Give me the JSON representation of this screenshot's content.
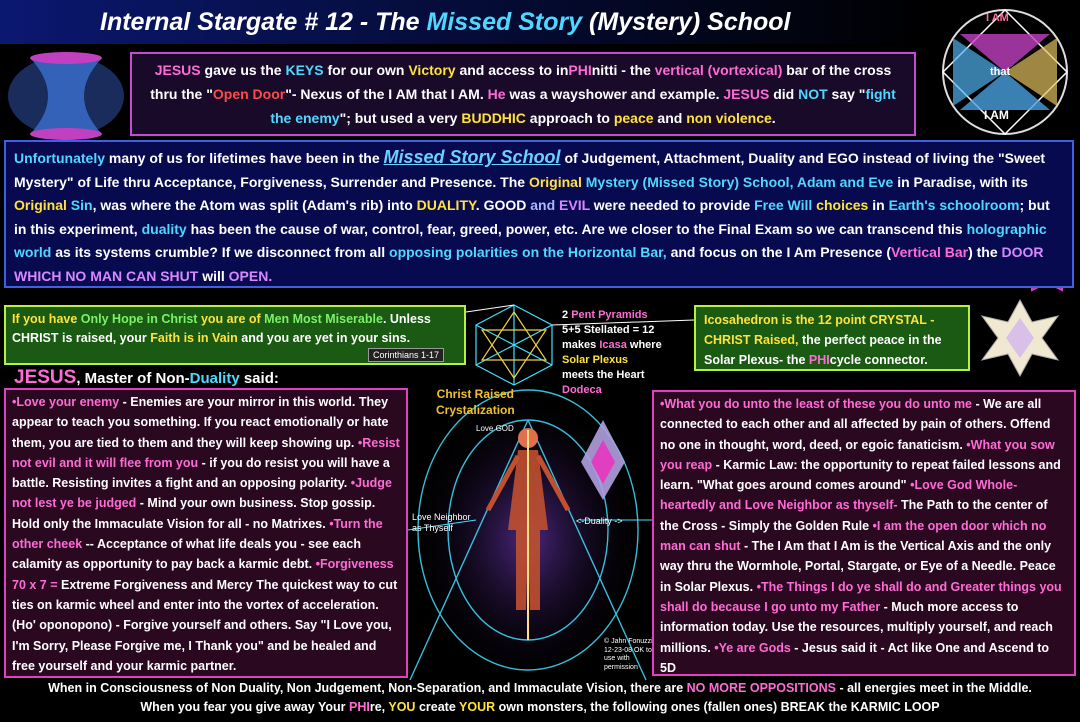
{
  "title": {
    "part1": "Internal Stargate # 12  - The ",
    "highlight": "Missed Story",
    "part2": " (Mystery)  School"
  },
  "top_box": {
    "segments": [
      {
        "t": "JESUS",
        "c": "pk"
      },
      {
        "t": " gave us the ",
        "c": ""
      },
      {
        "t": "KEYS",
        "c": "cy"
      },
      {
        "t": " for our own ",
        "c": ""
      },
      {
        "t": "Victory",
        "c": "yl"
      },
      {
        "t": " and access to in",
        "c": ""
      },
      {
        "t": "PHI",
        "c": "pk"
      },
      {
        "t": "nitti - the ",
        "c": ""
      },
      {
        "t": "vertical (vortexical)",
        "c": "pk"
      },
      {
        "t": " bar of the cross thru the \"",
        "c": ""
      },
      {
        "t": "Open Door",
        "c": "rd"
      },
      {
        "t": "\"- Nexus of the I AM that I AM.  ",
        "c": ""
      },
      {
        "t": "He",
        "c": "pk"
      },
      {
        "t": " was a wayshower and example. ",
        "c": ""
      },
      {
        "t": "JESUS",
        "c": "pk"
      },
      {
        "t": " did ",
        "c": ""
      },
      {
        "t": "NOT",
        "c": "cy"
      },
      {
        "t": " say \"",
        "c": ""
      },
      {
        "t": "fight the enemy",
        "c": "cy"
      },
      {
        "t": "\"; but used a very ",
        "c": ""
      },
      {
        "t": "BUDDHIC",
        "c": "yl"
      },
      {
        "t": " approach to ",
        "c": ""
      },
      {
        "t": "peace",
        "c": "yl"
      },
      {
        "t": " and ",
        "c": ""
      },
      {
        "t": "non violence",
        "c": "yl"
      },
      {
        "t": ".",
        "c": ""
      }
    ]
  },
  "middle_box": {
    "segments": [
      {
        "t": "Unfortunately",
        "c": "cy"
      },
      {
        "t": " many of us for lifetimes have been in the  ",
        "c": ""
      },
      {
        "t": "Missed Story School",
        "c": "msl"
      },
      {
        "t": " of  Judgement, Attachment, Duality and EGO  instead of living the \"Sweet Mystery\" of Life thru Acceptance, Forgiveness, Surrender and Presence. The ",
        "c": ""
      },
      {
        "t": "Original",
        "c": "yl"
      },
      {
        "t": "  Mystery (Missed Story) School, ",
        "c": "cy"
      },
      {
        "t": "Adam and Eve",
        "c": "cy"
      },
      {
        "t": " in Paradise, with its ",
        "c": ""
      },
      {
        "t": "Original",
        "c": "yl"
      },
      {
        "t": " Sin",
        "c": "cy"
      },
      {
        "t": ", was where the Atom was split (Adam's rib) into ",
        "c": ""
      },
      {
        "t": "DUALITY",
        "c": "yl"
      },
      {
        "t": ".  GOOD ",
        "c": ""
      },
      {
        "t": "and",
        "c": "lb"
      },
      {
        "t": " EVIL",
        "c": "vi"
      },
      {
        "t": " were needed to provide ",
        "c": ""
      },
      {
        "t": "Free Will",
        "c": "cy"
      },
      {
        "t": " choices",
        "c": "yl"
      },
      {
        "t": " in ",
        "c": ""
      },
      {
        "t": "Earth's schoolroom",
        "c": "cy"
      },
      {
        "t": "; but in this experiment, ",
        "c": ""
      },
      {
        "t": "duality",
        "c": "cy"
      },
      {
        "t": " has been the cause of war, control, fear, greed, power, etc. Are we closer to the Final Exam so we can transcend this ",
        "c": ""
      },
      {
        "t": "holographic world",
        "c": "cy"
      },
      {
        "t": " as its systems crumble?  If we disconnect from all ",
        "c": ""
      },
      {
        "t": "opposing polarities on the Horizontal Bar,",
        "c": "cy"
      },
      {
        "t": " and focus on the I Am Presence (",
        "c": ""
      },
      {
        "t": "Vertical Bar",
        "c": "pk"
      },
      {
        "t": ") the ",
        "c": ""
      },
      {
        "t": "DOOR WHICH NO MAN CAN SHUT",
        "c": "vi"
      },
      {
        "t": " will ",
        "c": ""
      },
      {
        "t": "OPEN.",
        "c": "vi"
      }
    ]
  },
  "hope_box": {
    "segments": [
      {
        "t": "If you have ",
        "c": "yl"
      },
      {
        "t": "Only Hope in Christ",
        "c": "gr"
      },
      {
        "t": " you are of ",
        "c": "yl"
      },
      {
        "t": "Men Most Miserable",
        "c": "gr"
      },
      {
        "t": ". Unless CHRIST is raised,  your ",
        "c": ""
      },
      {
        "t": "Faith is in Vain",
        "c": "yl"
      },
      {
        "t": " and you are yet in your sins.",
        "c": ""
      }
    ],
    "ref": "Corinthians 1-17"
  },
  "icosa_box": {
    "segments": [
      {
        "t": "Icosahedron is the 12 point CRYSTAL - CHRIST Raised, ",
        "c": "yl"
      },
      {
        "t": "the perfect peace in the Solar Plexus- the ",
        "c": ""
      },
      {
        "t": "PHI",
        "c": "pk"
      },
      {
        "t": "cycle connector.",
        "c": ""
      }
    ]
  },
  "pent_text": {
    "segments": [
      {
        "t": "2 ",
        "c": ""
      },
      {
        "t": "Pent Pyramids",
        "c": "pk"
      },
      {
        "t": " 5+5 Stellated = 12 makes ",
        "c": ""
      },
      {
        "t": "Icasa",
        "c": "pk"
      },
      {
        "t": " where ",
        "c": ""
      },
      {
        "t": "Solar Plexus",
        "c": "yl"
      },
      {
        "t": " meets the Heart ",
        "c": ""
      },
      {
        "t": "Dodeca",
        "c": "pk"
      }
    ]
  },
  "labels": {
    "christ_raised": "Christ Raised",
    "crystalization": "Crystalization",
    "love_god": "Love GOD",
    "love_neighbor": "Love Neighbor as Thyself",
    "duality": "<-Duality ->",
    "copyright": "© Jahn Fonuzzi 12-23-08 OK to use with permission",
    "iam_top": "I AM",
    "iam_bottom": "I AM",
    "that": "that"
  },
  "jesus_heading": {
    "name": "JESUS",
    "rest": ", Master of Non-",
    "duality": "Duality",
    "end": " said:"
  },
  "left_box": {
    "segments": [
      {
        "t": "•Love your enemy",
        "c": "pk"
      },
      {
        "t": "  - Enemies are your mirror in this world. They appear to teach you something. If you react emotionally or hate them, you are tied to them and they will keep showing up. ",
        "c": ""
      },
      {
        "t": "•Resist not evil and it will flee from you",
        "c": "pk"
      },
      {
        "t": " - if you do resist you will have a battle. Resisting invites a fight and an opposing polarity. ",
        "c": ""
      },
      {
        "t": "•Judge not lest ye be judged",
        "c": "pk"
      },
      {
        "t": " - Mind your own business.  Stop gossip.  Hold only the Immaculate Vision for all - no  Matrixes. ",
        "c": ""
      },
      {
        "t": "•Turn the other cheek",
        "c": "pk"
      },
      {
        "t": "  -- Acceptance of what  life deals you - see each calamity as opportunity to pay back a karmic debt. ",
        "c": ""
      },
      {
        "t": "•Forgiveness 70 x 7 =",
        "c": "pk"
      },
      {
        "t": "  Extreme Forgiveness and Mercy  The quickest way to cut ties on karmic wheel and enter into the vortex of acceleration. (Ho' oponopono) - Forgive yourself and others.  Say \"I Love you, I'm Sorry, Please Forgive me,  I Thank you\" and be healed and free yourself and your karmic partner.",
        "c": ""
      }
    ]
  },
  "right_box": {
    "segments": [
      {
        "t": "•What you do unto the least of these you do unto me",
        "c": "pk"
      },
      {
        "t": " - We are all connected to each other and all affected by pain of others.  Offend no one in thought, word,  deed, or egoic fanaticism. ",
        "c": ""
      },
      {
        "t": "•What you sow you reap",
        "c": "pk"
      },
      {
        "t": " - Karmic Law: the opportunity to  repeat failed lessons and learn. \"What goes around comes around\" ",
        "c": ""
      },
      {
        "t": "•Love God Whole-heartedly and Love Neighbor as thyself-",
        "c": "pk"
      },
      {
        "t": " The Path to the center of the Cross - Simply the Golden Rule ",
        "c": ""
      },
      {
        "t": "•I am the open door which no man  can shut",
        "c": "pk"
      },
      {
        "t": " - The I Am that I Am is the Vertical Axis and the only way thru the Wormhole, Portal, Stargate, or Eye of a Needle.  Peace in Solar Plexus. ",
        "c": ""
      },
      {
        "t": "•The Things I do ye shall do and Greater things you shall do because I go unto my Father",
        "c": "pk"
      },
      {
        "t": " - Much more access to information today.  Use the resources, multiply yourself, and reach millions. ",
        "c": ""
      },
      {
        "t": "•Ye are Gods",
        "c": "pk"
      },
      {
        "t": " - Jesus said it - Act like One and Ascend to 5D",
        "c": ""
      }
    ]
  },
  "footer": {
    "line1": [
      {
        "t": "When in Consciousness of Non Duality, Non Judgement, Non-Separation, and Immaculate Vision,  there are ",
        "c": ""
      },
      {
        "t": "NO MORE OPPOSITIONS",
        "c": "pk"
      },
      {
        "t": " - all energies meet in the Middle.",
        "c": ""
      }
    ],
    "line2": [
      {
        "t": "When you fear you give away Your ",
        "c": ""
      },
      {
        "t": "PHI",
        "c": "pk"
      },
      {
        "t": "re, ",
        "c": ""
      },
      {
        "t": "YOU",
        "c": "yl"
      },
      {
        "t": " create ",
        "c": ""
      },
      {
        "t": "YOUR",
        "c": "yl"
      },
      {
        "t": " own monsters, the following ones (fallen ones)  BREAK the KARMIC LOOP",
        "c": ""
      }
    ]
  },
  "colors": {
    "pink": "#ff6bd5",
    "yellow": "#ffe23c",
    "cyan": "#4fd8ff",
    "green": "#7df06a",
    "panel_blue": "#080a50",
    "panel_magenta": "#2a0820"
  }
}
